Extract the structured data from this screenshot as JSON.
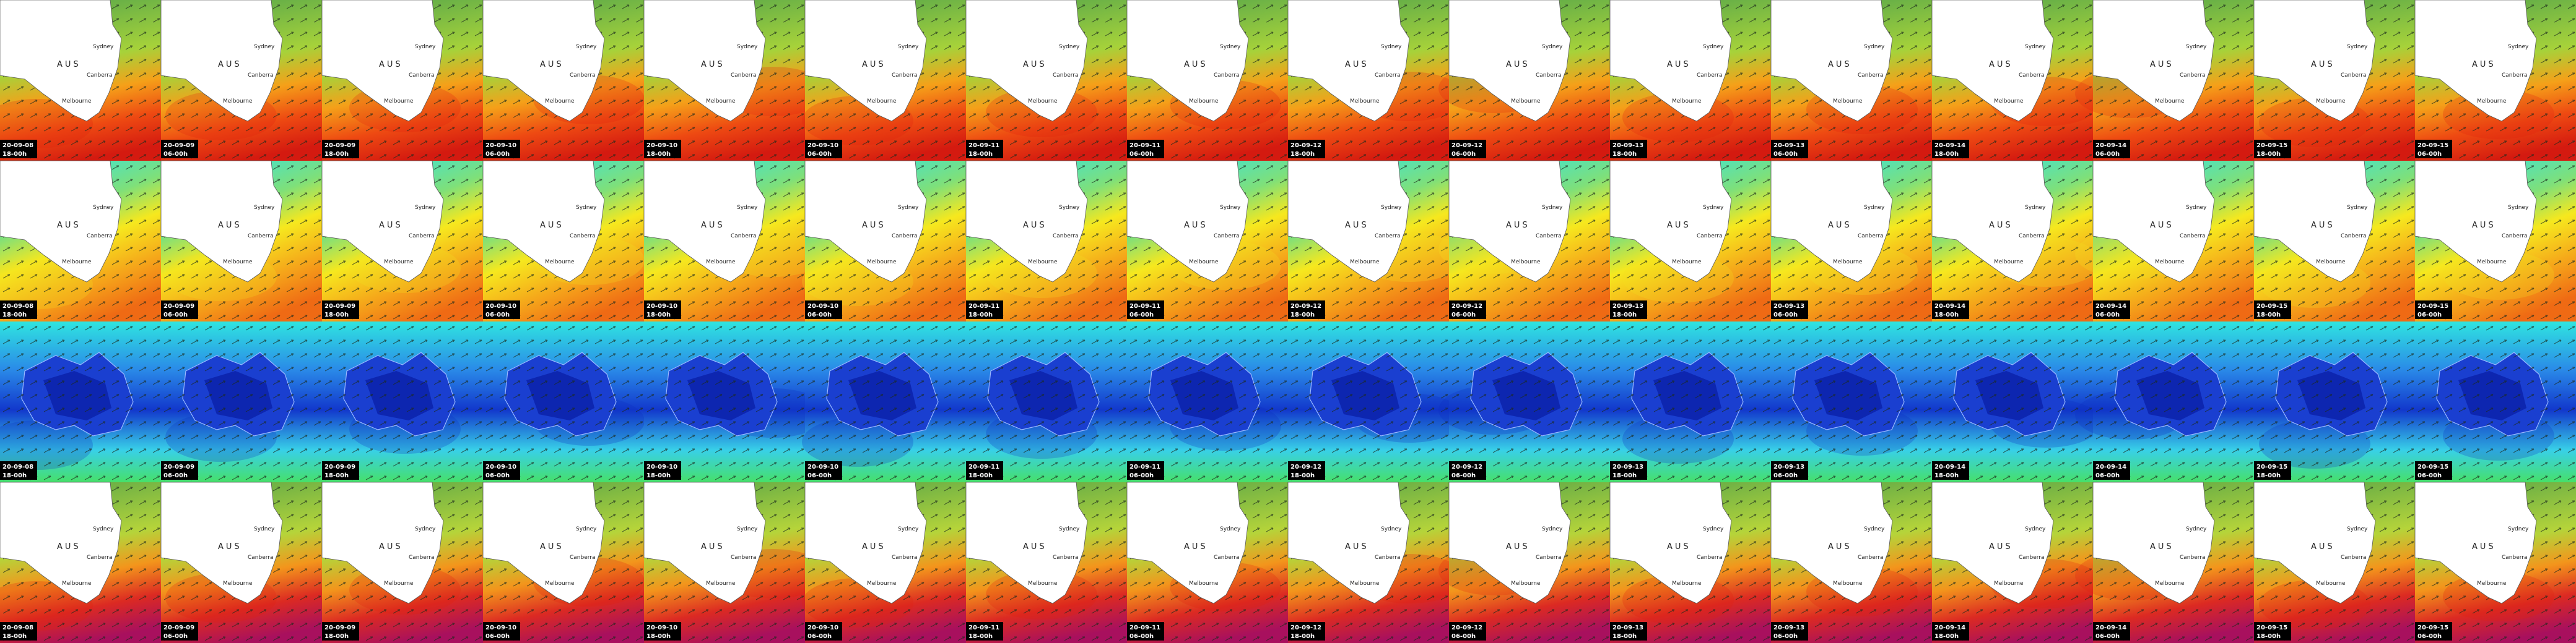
{
  "frames": [
    {
      "date": "20-09-08",
      "time": "18-00h"
    },
    {
      "date": "20-09-09",
      "time": "06-00h"
    },
    {
      "date": "20-09-09",
      "time": "18-00h"
    },
    {
      "date": "20-09-10",
      "time": "06-00h"
    },
    {
      "date": "20-09-10",
      "time": "18-00h"
    },
    {
      "date": "20-09-10",
      "time": "06-00h"
    },
    {
      "date": "20-09-11",
      "time": "18-00h"
    },
    {
      "date": "20-09-11",
      "time": "06-00h"
    },
    {
      "date": "20-09-12",
      "time": "18-00h"
    },
    {
      "date": "20-09-12",
      "time": "06-00h"
    },
    {
      "date": "20-09-13",
      "time": "18-00h"
    },
    {
      "date": "20-09-13",
      "time": "06-00h"
    },
    {
      "date": "20-09-14",
      "time": "18-00h"
    },
    {
      "date": "20-09-14",
      "time": "06-00h"
    },
    {
      "date": "20-09-15",
      "time": "18-00h"
    },
    {
      "date": "20-09-15",
      "time": "06-00h"
    }
  ],
  "map_labels": {
    "country": "AUS",
    "city_1": "Sydney",
    "city_2": "Canberra",
    "city_3": "Melbourne"
  }
}
